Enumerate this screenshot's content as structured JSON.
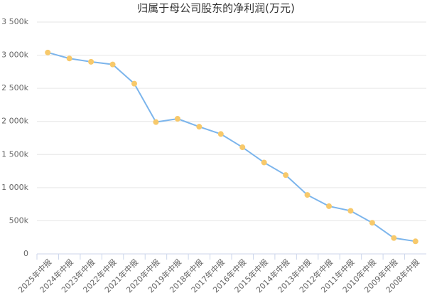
{
  "chart_data": {
    "type": "line",
    "title": "归属于母公司股东的净利润(万元)",
    "categories": [
      "2025年中报",
      "2024年中报",
      "2023年中报",
      "2022年中报",
      "2021年中报",
      "2020年中报",
      "2019年中报",
      "2018年中报",
      "2017年中报",
      "2016年中报",
      "2015年中报",
      "2014年中报",
      "2013年中报",
      "2012年中报",
      "2011年中报",
      "2010年中报",
      "2009年中报",
      "2008年中报"
    ],
    "series": [
      {
        "name": "归属于母公司股东的净利润",
        "color": "#7cb5ec",
        "marker_color": "#f7c96b",
        "values": [
          3040000,
          2950000,
          2900000,
          2860000,
          2570000,
          1990000,
          2040000,
          1920000,
          1810000,
          1610000,
          1380000,
          1190000,
          890000,
          720000,
          650000,
          470000,
          240000,
          190000
        ]
      }
    ],
    "ylim": [
      0,
      3500000
    ],
    "yticks": [
      0,
      {
        "value": 500000,
        "label": "500k"
      },
      {
        "value": 1000000,
        "label": "1 000k"
      },
      {
        "value": 1500000,
        "label": "1 500k"
      },
      {
        "value": 2000000,
        "label": "2 000k"
      },
      {
        "value": 2500000,
        "label": "2 500k"
      },
      {
        "value": 3000000,
        "label": "3 000k"
      },
      {
        "value": 3500000,
        "label": "3 500k"
      }
    ],
    "grid": true
  }
}
